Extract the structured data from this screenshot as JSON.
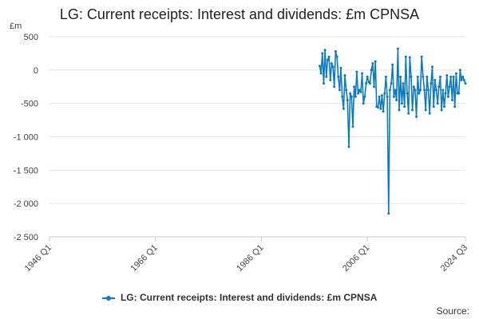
{
  "chart_data": {
    "type": "line",
    "title": "LG: Current receipts: Interest and dividends: £m CPNSA",
    "ylabel": "£m",
    "xlabel": "",
    "x_ticks": [
      "1946 Q1",
      "1966 Q1",
      "1986 Q1",
      "2006 Q1",
      "2024 Q3"
    ],
    "ylim": [
      -2500,
      500
    ],
    "y_ticks": [
      500,
      0,
      -500,
      -1000,
      -1500,
      -2000,
      -2500
    ],
    "y_tick_labels": [
      "500",
      "0",
      "-500",
      "-1 000",
      "-1 500",
      "-2 000",
      "-2 500"
    ],
    "grid": true,
    "legend_position": "bottom",
    "series": [
      {
        "name": "LG: Current receipts: Interest and dividends: £m CPNSA",
        "color": "#0d7bc2",
        "x": [
          "1997 Q1",
          "1997 Q2",
          "1997 Q3",
          "1997 Q4",
          "1998 Q1",
          "1998 Q2",
          "1998 Q3",
          "1998 Q4",
          "1999 Q1",
          "1999 Q2",
          "1999 Q3",
          "1999 Q4",
          "2000 Q1",
          "2000 Q2",
          "2000 Q3",
          "2000 Q4",
          "2001 Q1",
          "2001 Q2",
          "2001 Q3",
          "2001 Q4",
          "2002 Q1",
          "2002 Q2",
          "2002 Q3",
          "2002 Q4",
          "2003 Q1",
          "2003 Q2",
          "2003 Q3",
          "2003 Q4",
          "2004 Q1",
          "2004 Q2",
          "2004 Q3",
          "2004 Q4",
          "2005 Q1",
          "2005 Q2",
          "2005 Q3",
          "2005 Q4",
          "2006 Q1",
          "2006 Q2",
          "2006 Q3",
          "2006 Q4",
          "2007 Q1",
          "2007 Q2",
          "2007 Q3",
          "2007 Q4",
          "2008 Q1",
          "2008 Q2",
          "2008 Q3",
          "2008 Q4",
          "2009 Q1",
          "2009 Q2",
          "2009 Q3",
          "2009 Q4",
          "2010 Q1",
          "2010 Q2",
          "2010 Q3",
          "2010 Q4",
          "2011 Q1",
          "2011 Q2",
          "2011 Q3",
          "2011 Q4",
          "2012 Q1",
          "2012 Q2",
          "2012 Q3",
          "2012 Q4",
          "2013 Q1",
          "2013 Q2",
          "2013 Q3",
          "2013 Q4",
          "2014 Q1",
          "2014 Q2",
          "2014 Q3",
          "2014 Q4",
          "2015 Q1",
          "2015 Q2",
          "2015 Q3",
          "2015 Q4",
          "2016 Q1",
          "2016 Q2",
          "2016 Q3",
          "2016 Q4",
          "2017 Q1",
          "2017 Q2",
          "2017 Q3",
          "2017 Q4",
          "2018 Q1",
          "2018 Q2",
          "2018 Q3",
          "2018 Q4",
          "2019 Q1",
          "2019 Q2",
          "2019 Q3",
          "2019 Q4",
          "2020 Q1",
          "2020 Q2",
          "2020 Q3",
          "2020 Q4",
          "2021 Q1",
          "2021 Q2",
          "2021 Q3",
          "2021 Q4",
          "2022 Q1",
          "2022 Q2",
          "2022 Q3",
          "2022 Q4",
          "2023 Q1",
          "2023 Q2",
          "2023 Q3",
          "2023 Q4",
          "2024 Q1",
          "2024 Q2",
          "2024 Q3"
        ],
        "values": [
          60,
          -50,
          250,
          -200,
          300,
          -100,
          150,
          200,
          -150,
          100,
          50,
          -250,
          280,
          200,
          -100,
          -300,
          30,
          -400,
          -580,
          -80,
          -300,
          -450,
          -1150,
          -350,
          -400,
          -850,
          -250,
          -400,
          -30,
          -350,
          -300,
          -330,
          -50,
          -500,
          -400,
          -200,
          -100,
          -180,
          -200,
          0,
          100,
          -250,
          130,
          -550,
          -560,
          -400,
          -580,
          -380,
          -620,
          -350,
          -100,
          -400,
          -2150,
          -300,
          -200,
          80,
          -400,
          -300,
          -450,
          320,
          -600,
          -100,
          -500,
          -200,
          -550,
          200,
          -350,
          -650,
          190,
          -100,
          -600,
          -250,
          -300,
          -700,
          -100,
          -350,
          -300,
          200,
          -100,
          -300,
          -600,
          -100,
          -300,
          -650,
          -200,
          50,
          -550,
          -150,
          -300,
          -500,
          -250,
          -100,
          -600,
          -300,
          -550,
          -350,
          -80,
          -400,
          -250,
          -100,
          -450,
          -100,
          -550,
          -50,
          -350,
          -350,
          0,
          -150,
          -100,
          -150,
          -200
        ]
      }
    ]
  },
  "legend": {
    "label": "LG: Current receipts: Interest and dividends: £m CPNSA"
  },
  "footer": {
    "source_label": "Source:"
  }
}
